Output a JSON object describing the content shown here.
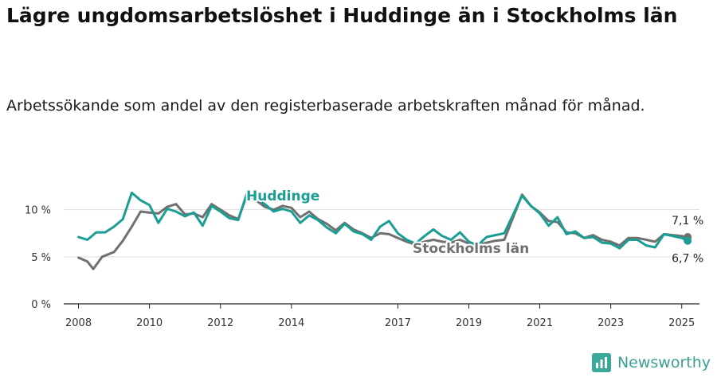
{
  "header": {
    "title": "Lägre ungdomsarbetslöshet i Huddinge än i Stockholms län",
    "subtitle": "Arbetssökande som andel av den registerbaserade arbetskraften månad för månad."
  },
  "brand": {
    "name": "Newsworthy",
    "icon": "newsworthy-logo-icon",
    "color": "#3aa89a"
  },
  "colors": {
    "huddinge": "#1a9e94",
    "stockholm": "#707070",
    "grid": "#dddddd",
    "axis": "#222222"
  },
  "chart_data": {
    "type": "line",
    "title": "Lägre ungdomsarbetslöshet i Huddinge än i Stockholms län",
    "subtitle": "Arbetssökande som andel av den registerbaserade arbetskraften månad för månad.",
    "xlabel": "",
    "ylabel": "",
    "x_ticks": [
      "2008",
      "2010",
      "2012",
      "2014",
      "2017",
      "2019",
      "2021",
      "2023",
      "2025"
    ],
    "y_ticks": [
      {
        "value": 0,
        "label": "0 %"
      },
      {
        "value": 5,
        "label": "5 %"
      },
      {
        "value": 10,
        "label": "10 %"
      }
    ],
    "ylim": [
      0,
      12
    ],
    "xlim": [
      "2007-08",
      "2025-07"
    ],
    "grid": "horizontal",
    "legend": "inline-labels",
    "series": [
      {
        "name": "Huddinge",
        "color": "#1a9e94",
        "end_label": "6,7 %",
        "points": [
          [
            "2008-01",
            7.1
          ],
          [
            "2008-04",
            6.8
          ],
          [
            "2008-07",
            7.6
          ],
          [
            "2008-10",
            7.6
          ],
          [
            "2009-01",
            8.2
          ],
          [
            "2009-04",
            9.0
          ],
          [
            "2009-07",
            11.8
          ],
          [
            "2009-10",
            11.0
          ],
          [
            "2010-01",
            10.5
          ],
          [
            "2010-04",
            8.6
          ],
          [
            "2010-07",
            10.1
          ],
          [
            "2010-10",
            9.8
          ],
          [
            "2011-01",
            9.3
          ],
          [
            "2011-04",
            9.7
          ],
          [
            "2011-07",
            8.3
          ],
          [
            "2011-10",
            10.4
          ],
          [
            "2012-01",
            9.8
          ],
          [
            "2012-04",
            9.1
          ],
          [
            "2012-07",
            8.9
          ],
          [
            "2012-10",
            11.8
          ],
          [
            "2013-01",
            11.2
          ],
          [
            "2013-04",
            10.6
          ],
          [
            "2013-07",
            9.8
          ],
          [
            "2013-10",
            10.1
          ],
          [
            "2014-01",
            9.8
          ],
          [
            "2014-04",
            8.6
          ],
          [
            "2014-07",
            9.4
          ],
          [
            "2014-10",
            8.9
          ],
          [
            "2015-01",
            8.1
          ],
          [
            "2015-04",
            7.5
          ],
          [
            "2015-07",
            8.5
          ],
          [
            "2015-10",
            7.7
          ],
          [
            "2016-01",
            7.4
          ],
          [
            "2016-04",
            6.8
          ],
          [
            "2016-07",
            8.2
          ],
          [
            "2016-10",
            8.8
          ],
          [
            "2017-01",
            7.5
          ],
          [
            "2017-04",
            6.8
          ],
          [
            "2017-07",
            6.4
          ],
          [
            "2017-10",
            7.2
          ],
          [
            "2018-01",
            7.9
          ],
          [
            "2018-04",
            7.2
          ],
          [
            "2018-07",
            6.8
          ],
          [
            "2018-10",
            7.6
          ],
          [
            "2019-01",
            6.6
          ],
          [
            "2019-04",
            6.2
          ],
          [
            "2019-07",
            7.1
          ],
          [
            "2019-10",
            7.3
          ],
          [
            "2020-01",
            7.5
          ],
          [
            "2020-04",
            9.5
          ],
          [
            "2020-07",
            11.5
          ],
          [
            "2020-10",
            10.4
          ],
          [
            "2021-01",
            9.6
          ],
          [
            "2021-04",
            8.3
          ],
          [
            "2021-07",
            9.2
          ],
          [
            "2021-10",
            7.4
          ],
          [
            "2022-01",
            7.7
          ],
          [
            "2022-04",
            7.0
          ],
          [
            "2022-07",
            7.1
          ],
          [
            "2022-10",
            6.5
          ],
          [
            "2023-01",
            6.4
          ],
          [
            "2023-04",
            5.9
          ],
          [
            "2023-07",
            6.8
          ],
          [
            "2023-10",
            6.8
          ],
          [
            "2024-01",
            6.2
          ],
          [
            "2024-04",
            6.0
          ],
          [
            "2024-07",
            7.4
          ],
          [
            "2024-10",
            7.2
          ],
          [
            "2025-01",
            7.0
          ],
          [
            "2025-03",
            6.7
          ]
        ]
      },
      {
        "name": "Stockholms län",
        "color": "#707070",
        "end_label": "7,1 %",
        "points": [
          [
            "2008-01",
            4.9
          ],
          [
            "2008-04",
            4.5
          ],
          [
            "2008-06",
            3.7
          ],
          [
            "2008-09",
            5.0
          ],
          [
            "2009-01",
            5.5
          ],
          [
            "2009-04",
            6.7
          ],
          [
            "2009-07",
            8.2
          ],
          [
            "2009-10",
            9.8
          ],
          [
            "2010-01",
            9.7
          ],
          [
            "2010-04",
            9.6
          ],
          [
            "2010-07",
            10.3
          ],
          [
            "2010-10",
            10.6
          ],
          [
            "2011-01",
            9.5
          ],
          [
            "2011-04",
            9.6
          ],
          [
            "2011-07",
            9.2
          ],
          [
            "2011-10",
            10.6
          ],
          [
            "2012-01",
            10.0
          ],
          [
            "2012-04",
            9.4
          ],
          [
            "2012-07",
            9.0
          ],
          [
            "2012-10",
            11.6
          ],
          [
            "2013-01",
            11.0
          ],
          [
            "2013-04",
            10.3
          ],
          [
            "2013-07",
            10.0
          ],
          [
            "2013-10",
            10.4
          ],
          [
            "2014-01",
            10.2
          ],
          [
            "2014-04",
            9.2
          ],
          [
            "2014-07",
            9.8
          ],
          [
            "2014-10",
            9.0
          ],
          [
            "2015-01",
            8.5
          ],
          [
            "2015-04",
            7.8
          ],
          [
            "2015-07",
            8.6
          ],
          [
            "2015-10",
            7.9
          ],
          [
            "2016-01",
            7.5
          ],
          [
            "2016-04",
            7.0
          ],
          [
            "2016-07",
            7.5
          ],
          [
            "2016-10",
            7.4
          ],
          [
            "2017-01",
            7.0
          ],
          [
            "2017-04",
            6.6
          ],
          [
            "2017-07",
            6.3
          ],
          [
            "2017-10",
            6.6
          ],
          [
            "2018-01",
            6.8
          ],
          [
            "2018-04",
            6.6
          ],
          [
            "2018-07",
            6.5
          ],
          [
            "2018-10",
            6.8
          ],
          [
            "2019-01",
            6.4
          ],
          [
            "2019-04",
            6.2
          ],
          [
            "2019-07",
            6.5
          ],
          [
            "2019-10",
            6.7
          ],
          [
            "2020-01",
            6.8
          ],
          [
            "2020-04",
            9.2
          ],
          [
            "2020-07",
            11.6
          ],
          [
            "2020-10",
            10.4
          ],
          [
            "2021-01",
            9.7
          ],
          [
            "2021-04",
            8.8
          ],
          [
            "2021-07",
            8.7
          ],
          [
            "2021-10",
            7.6
          ],
          [
            "2022-01",
            7.5
          ],
          [
            "2022-04",
            7.0
          ],
          [
            "2022-07",
            7.3
          ],
          [
            "2022-10",
            6.8
          ],
          [
            "2023-01",
            6.6
          ],
          [
            "2023-04",
            6.2
          ],
          [
            "2023-07",
            7.0
          ],
          [
            "2023-10",
            7.0
          ],
          [
            "2024-01",
            6.8
          ],
          [
            "2024-04",
            6.6
          ],
          [
            "2024-07",
            7.4
          ],
          [
            "2024-10",
            7.3
          ],
          [
            "2025-01",
            7.2
          ],
          [
            "2025-03",
            7.1
          ]
        ]
      }
    ]
  }
}
